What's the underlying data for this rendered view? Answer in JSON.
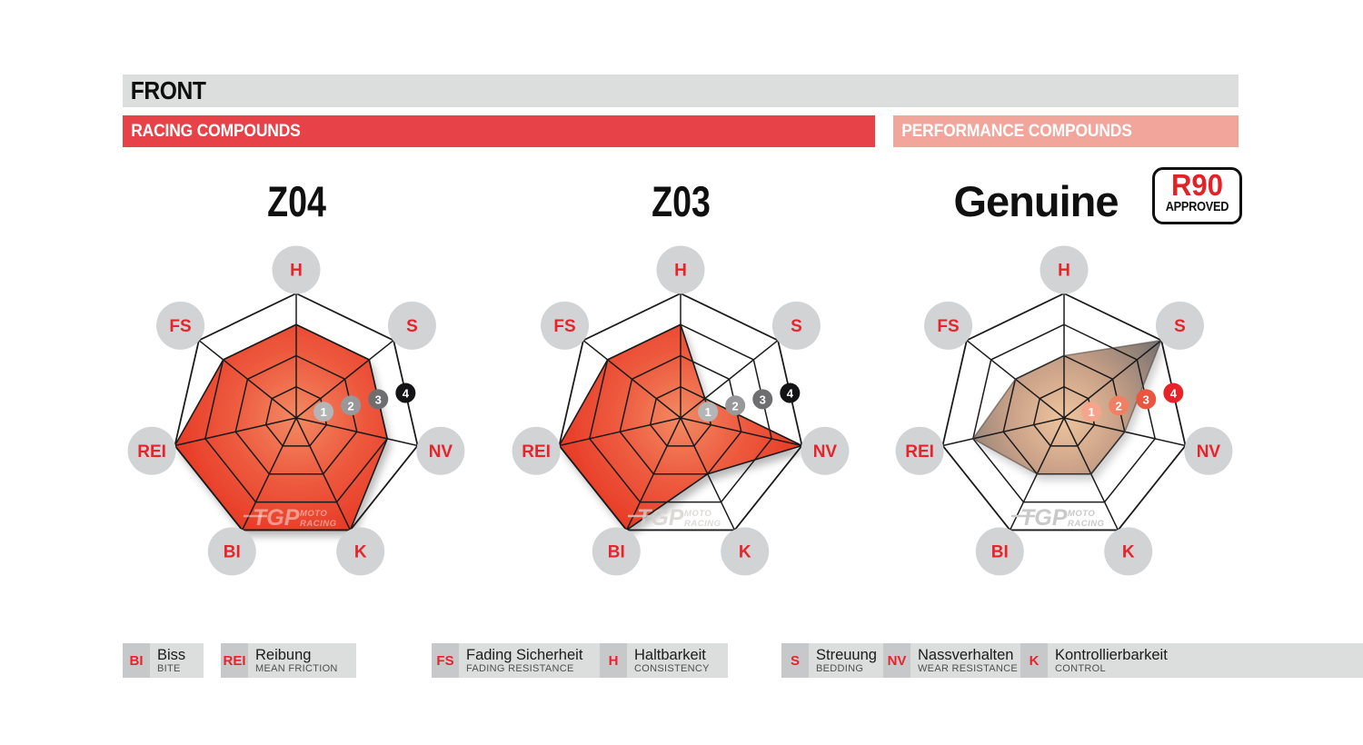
{
  "header": {
    "title": "FRONT",
    "bands": [
      {
        "label": "RACING COMPOUNDS",
        "color": "#e74247"
      },
      {
        "label": "PERFORMANCE COMPOUNDS",
        "color": "#f2a59b"
      }
    ]
  },
  "accent_red": "#e8232b",
  "scale_markers": [
    "1",
    "2",
    "3",
    "4"
  ],
  "watermark": {
    "logo": "TGP",
    "sub1": "MOTO",
    "sub2": "RACING"
  },
  "charts": [
    {
      "id": "z04",
      "title": "Z04",
      "group": "RACING COMPOUNDS",
      "marker_colors": [
        "#b5b5b7",
        "#98989a",
        "#6e6e70",
        "#141416"
      ],
      "fill": {
        "center": "#f28a63",
        "mid": "#ee6043",
        "edge": "#e83a26",
        "opacity": 1,
        "outline": "#1b1b1b",
        "shadow_opacity": 0.28
      },
      "watermark_color": "rgba(255,255,255,0.45)"
    },
    {
      "id": "z03",
      "title": "Z03",
      "group": "RACING COMPOUNDS",
      "marker_colors": [
        "#b5b5b7",
        "#98989a",
        "#6e6e70",
        "#141416"
      ],
      "fill": {
        "center": "#f28a63",
        "mid": "#ee6043",
        "edge": "#e83a26",
        "opacity": 1,
        "outline": "#1b1b1b",
        "shadow_opacity": 0.28
      },
      "watermark_color": "rgba(212,207,205,0.8)"
    },
    {
      "id": "genuine",
      "title": "Genuine",
      "group": "PERFORMANCE COMPOUNDS",
      "badge": {
        "top": "R90",
        "bottom": "APPROVED"
      },
      "marker_colors": [
        "#f4a58c",
        "#f07f64",
        "#ea5540",
        "#e42429"
      ],
      "fill": {
        "center": "#eec29a",
        "mid": "#c79d82",
        "edge": "#6f6b69",
        "opacity": 0.95,
        "outline": "rgba(70,66,64,0.55)",
        "shadow_opacity": 0.2
      },
      "watermark_color": "#c9c9c9"
    }
  ],
  "legend": {
    "items": [
      {
        "abbr": "BI",
        "de": "Biss",
        "en": "BITE"
      },
      {
        "abbr": "REI",
        "de": "Reibung",
        "en": "MEAN FRICTION"
      },
      {
        "abbr": "FS",
        "de": "Fading Sicherheit",
        "en": "FADING RESISTANCE"
      },
      {
        "abbr": "H",
        "de": "Haltbarkeit",
        "en": "CONSISTENCY"
      },
      {
        "abbr": "S",
        "de": "Streuung",
        "en": "BEDDING"
      },
      {
        "abbr": "NV",
        "de": "Nassverhalten",
        "en": "WEAR RESISTANCE"
      },
      {
        "abbr": "K",
        "de": "Kontrollierbarkeit",
        "en": "CONTROL"
      }
    ]
  },
  "chart_data": [
    {
      "type": "radar",
      "title": "Z04",
      "compound_group": "RACING COMPOUNDS",
      "axes": [
        "H",
        "S",
        "NV",
        "K",
        "BI",
        "REI",
        "FS"
      ],
      "values": [
        3,
        3,
        3,
        4,
        4,
        4,
        3
      ],
      "scale": {
        "min": 0,
        "max": 4,
        "rings": [
          1,
          2,
          3,
          4
        ]
      }
    },
    {
      "type": "radar",
      "title": "Z03",
      "compound_group": "RACING COMPOUNDS",
      "axes": [
        "H",
        "S",
        "NV",
        "K",
        "BI",
        "REI",
        "FS"
      ],
      "values": [
        3,
        1,
        4,
        2,
        4,
        4,
        3
      ],
      "scale": {
        "min": 0,
        "max": 4,
        "rings": [
          1,
          2,
          3,
          4
        ]
      }
    },
    {
      "type": "radar",
      "title": "Genuine",
      "compound_group": "PERFORMANCE COMPOUNDS",
      "axes": [
        "H",
        "S",
        "NV",
        "K",
        "BI",
        "REI",
        "FS"
      ],
      "values": [
        2,
        4,
        2,
        2,
        2,
        3,
        2
      ],
      "scale": {
        "min": 0,
        "max": 4,
        "rings": [
          1,
          2,
          3,
          4
        ]
      }
    }
  ]
}
